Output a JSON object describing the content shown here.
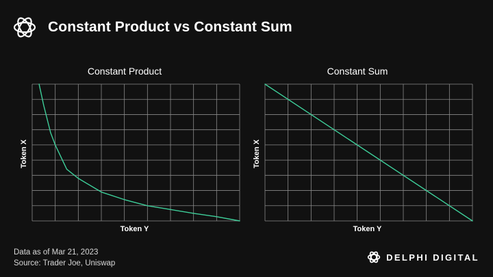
{
  "header": {
    "title": "Constant Product vs Constant Sum",
    "logo_icon": "delphi-knot-icon"
  },
  "chart_data": [
    {
      "type": "line",
      "title": "Constant Product",
      "xlabel": "Token Y",
      "ylabel": "Token X",
      "grid": true,
      "grid_cols": 9,
      "grid_rows": 9,
      "line_color": "#3ecf9a",
      "x": [
        0.3,
        0.5,
        0.8,
        1.0,
        1.5,
        2.0,
        3.0,
        4.0,
        5.0,
        6.0,
        7.0,
        8.0,
        9.0
      ],
      "y": [
        9.0,
        7.6,
        5.8,
        5.0,
        3.4,
        2.8,
        1.9,
        1.4,
        1.0,
        0.75,
        0.5,
        0.28,
        0.0
      ],
      "xlim": [
        0,
        9
      ],
      "ylim": [
        0,
        9
      ]
    },
    {
      "type": "line",
      "title": "Constant Sum",
      "xlabel": "Token Y",
      "ylabel": "Token X",
      "grid": true,
      "grid_cols": 9,
      "grid_rows": 9,
      "line_color": "#3ecf9a",
      "x": [
        0,
        9
      ],
      "y": [
        9,
        0
      ],
      "xlim": [
        0,
        9
      ],
      "ylim": [
        0,
        9
      ]
    }
  ],
  "footer": {
    "date": "Data as of Mar 21, 2023",
    "source": "Source: Trader Joe, Uniswap"
  },
  "brand": {
    "name": "DELPHI DIGITAL",
    "logo_icon": "delphi-knot-icon"
  }
}
